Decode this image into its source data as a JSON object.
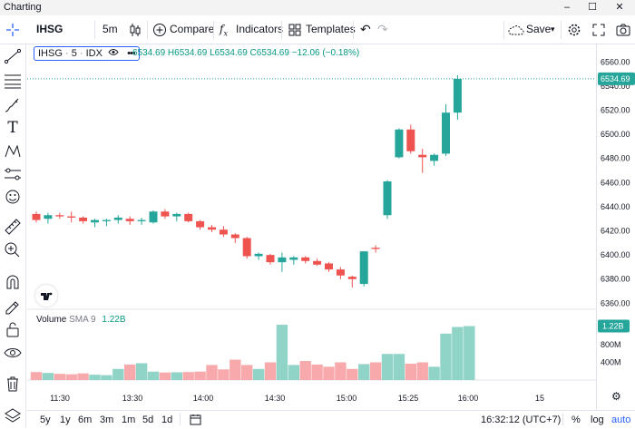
{
  "window": {
    "title": "Charting",
    "controls": [
      "–",
      "☐",
      "✕"
    ]
  },
  "toolbar": {
    "symbol": "IHSG",
    "interval": "5m",
    "compare_label": "Compare",
    "indicators_label": "Indicators",
    "templates_label": "Templates",
    "save_label": "Save"
  },
  "legend": {
    "symbol": "IHSG",
    "interval": "5",
    "exchange": "IDX",
    "ohlc_text": "6534.69 H6534.69 L6534.69 C6534.69 −12.06 (−0.18%)"
  },
  "volume_legend": {
    "name": "Volume",
    "sma": "SMA 9",
    "value": "1.22B"
  },
  "price_axis": {
    "ticks": [
      "6560.00",
      "6540.00",
      "6520.00",
      "6500.00",
      "6480.00",
      "6460.00",
      "6440.00",
      "6420.00",
      "6400.00",
      "6380.00",
      "6360.00"
    ],
    "last_price_label": "6534.69",
    "volume_ticks": [
      "800M",
      "400M"
    ],
    "volume_label": "1.22B"
  },
  "time_axis": {
    "ticks": [
      "11:30",
      "13:30",
      "14:00",
      "14:30",
      "15:00",
      "15:25",
      "16:00",
      "15"
    ]
  },
  "bottom": {
    "ranges": [
      "5y",
      "1y",
      "6m",
      "3m",
      "1m",
      "5d",
      "1d"
    ],
    "clock": "16:32:12 (UTC+7)",
    "pct": "%",
    "log": "log",
    "auto": "auto"
  },
  "colors": {
    "up": "#26a69a",
    "down": "#ef5350",
    "vol_up": "#8fd4c6",
    "vol_down": "#f7a9ab",
    "accent": "#2962ff"
  },
  "chart_data": {
    "type": "candlestick",
    "ylim": [
      6355,
      6570
    ],
    "volume_ylim": [
      0,
      1600
    ],
    "volume_unit": "M",
    "candles": [
      {
        "o": 6434,
        "h": 6436,
        "l": 6427,
        "c": 6429,
        "v": 180
      },
      {
        "o": 6430,
        "h": 6435,
        "l": 6426,
        "c": 6433,
        "v": 160
      },
      {
        "o": 6433,
        "h": 6435,
        "l": 6430,
        "c": 6432,
        "v": 140
      },
      {
        "o": 6432,
        "h": 6436,
        "l": 6427,
        "c": 6431,
        "v": 130
      },
      {
        "o": 6431,
        "h": 6432,
        "l": 6426,
        "c": 6428,
        "v": 150
      },
      {
        "o": 6427,
        "h": 6430,
        "l": 6423,
        "c": 6429,
        "v": 120
      },
      {
        "o": 6428,
        "h": 6430,
        "l": 6424,
        "c": 6429,
        "v": 110
      },
      {
        "o": 6429,
        "h": 6433,
        "l": 6426,
        "c": 6431,
        "v": 250
      },
      {
        "o": 6430,
        "h": 6432,
        "l": 6425,
        "c": 6428,
        "v": 350
      },
      {
        "o": 6428,
        "h": 6431,
        "l": 6425,
        "c": 6429,
        "v": 380
      },
      {
        "o": 6427,
        "h": 6437,
        "l": 6426,
        "c": 6436,
        "v": 190
      },
      {
        "o": 6436,
        "h": 6438,
        "l": 6430,
        "c": 6432,
        "v": 170
      },
      {
        "o": 6432,
        "h": 6435,
        "l": 6428,
        "c": 6434,
        "v": 175
      },
      {
        "o": 6434,
        "h": 6435,
        "l": 6427,
        "c": 6428,
        "v": 180
      },
      {
        "o": 6428,
        "h": 6429,
        "l": 6421,
        "c": 6423,
        "v": 190
      },
      {
        "o": 6423,
        "h": 6425,
        "l": 6419,
        "c": 6421,
        "v": 340
      },
      {
        "o": 6421,
        "h": 6424,
        "l": 6415,
        "c": 6417,
        "v": 240
      },
      {
        "o": 6417,
        "h": 6418,
        "l": 6410,
        "c": 6414,
        "v": 460
      },
      {
        "o": 6414,
        "h": 6415,
        "l": 6397,
        "c": 6399,
        "v": 340
      },
      {
        "o": 6399,
        "h": 6402,
        "l": 6396,
        "c": 6401,
        "v": 250
      },
      {
        "o": 6400,
        "h": 6401,
        "l": 6392,
        "c": 6394,
        "v": 400
      },
      {
        "o": 6394,
        "h": 6402,
        "l": 6386,
        "c": 6398,
        "v": 1250
      },
      {
        "o": 6396,
        "h": 6399,
        "l": 6392,
        "c": 6398,
        "v": 340
      },
      {
        "o": 6398,
        "h": 6399,
        "l": 6393,
        "c": 6395,
        "v": 430
      },
      {
        "o": 6395,
        "h": 6397,
        "l": 6391,
        "c": 6392,
        "v": 350
      },
      {
        "o": 6393,
        "h": 6394,
        "l": 6386,
        "c": 6388,
        "v": 300
      },
      {
        "o": 6388,
        "h": 6390,
        "l": 6380,
        "c": 6383,
        "v": 400
      },
      {
        "o": 6382,
        "h": 6383,
        "l": 6373,
        "c": 6380,
        "v": 250
      },
      {
        "o": 6376,
        "h": 6403,
        "l": 6374,
        "c": 6403,
        "v": 360
      },
      {
        "o": 6406,
        "h": 6408,
        "l": 6402,
        "c": 6405,
        "v": 400
      },
      {
        "o": 6433,
        "h": 6462,
        "l": 6430,
        "c": 6461,
        "v": 590
      },
      {
        "o": 6481,
        "h": 6505,
        "l": 6480,
        "c": 6504,
        "v": 590
      },
      {
        "o": 6504,
        "h": 6508,
        "l": 6484,
        "c": 6486,
        "v": 370
      },
      {
        "o": 6483,
        "h": 6488,
        "l": 6468,
        "c": 6481,
        "v": 400
      },
      {
        "o": 6478,
        "h": 6484,
        "l": 6474,
        "c": 6483,
        "v": 300
      },
      {
        "o": 6484,
        "h": 6525,
        "l": 6482,
        "c": 6518,
        "v": 1050
      },
      {
        "o": 6518,
        "h": 6549,
        "l": 6512,
        "c": 6546,
        "v": 1200
      }
    ],
    "volume_bars_extra": [
      {
        "v": 1220,
        "up": true
      }
    ]
  }
}
